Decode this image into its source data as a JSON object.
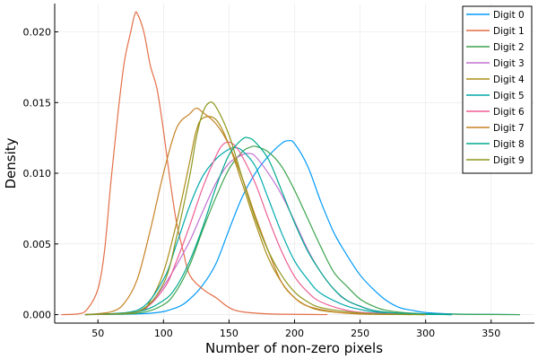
{
  "chart_data": {
    "type": "line",
    "title": "",
    "xlabel": "Number of non-zero pixels",
    "ylabel": "Density",
    "xlim": [
      17,
      383
    ],
    "ylim": [
      -0.0006,
      0.022
    ],
    "xticks": [
      50,
      100,
      150,
      200,
      250,
      300,
      350
    ],
    "xtick_labels": [
      "50",
      "100",
      "150",
      "200",
      "250",
      "300",
      "350"
    ],
    "yticks": [
      0.0,
      0.005,
      0.01,
      0.015,
      0.02
    ],
    "ytick_labels": [
      "0.000",
      "0.005",
      "0.010",
      "0.015",
      "0.020"
    ],
    "grid": true,
    "legend_position": "top-right",
    "series": [
      {
        "name": "Digit 0",
        "color": "#009AFA",
        "x": [
          40,
          90,
          110,
          120,
          130,
          140,
          150,
          160,
          170,
          180,
          190,
          195,
          200,
          210,
          220,
          230,
          240,
          250,
          260,
          270,
          280,
          290,
          300,
          320,
          340,
          372
        ],
        "y": [
          0.0,
          0.0001,
          0.0005,
          0.0011,
          0.0021,
          0.0036,
          0.006,
          0.0083,
          0.01,
          0.0112,
          0.0121,
          0.0123,
          0.0121,
          0.0105,
          0.008,
          0.0058,
          0.0042,
          0.0028,
          0.0018,
          0.001,
          0.0005,
          0.0003,
          0.00015,
          5e-05,
          2e-05,
          0.0
        ]
      },
      {
        "name": "Digit 1",
        "color": "#E36F47",
        "x": [
          22,
          35,
          42,
          50,
          55,
          60,
          65,
          70,
          75,
          78,
          80,
          85,
          90,
          95,
          100,
          105,
          110,
          115,
          120,
          130,
          140,
          150,
          160,
          180,
          200,
          225
        ],
        "y": [
          0.0,
          5e-05,
          0.0004,
          0.0018,
          0.0045,
          0.0095,
          0.014,
          0.0178,
          0.02,
          0.0212,
          0.0213,
          0.02,
          0.0176,
          0.016,
          0.013,
          0.0095,
          0.0065,
          0.0045,
          0.0028,
          0.0018,
          0.0012,
          0.0005,
          0.0002,
          5e-05,
          2e-05,
          0.0
        ]
      },
      {
        "name": "Digit 2",
        "color": "#3EA44E",
        "x": [
          40,
          80,
          100,
          110,
          120,
          130,
          140,
          150,
          160,
          165,
          170,
          180,
          190,
          200,
          210,
          220,
          230,
          240,
          250,
          260,
          270,
          290,
          320,
          372
        ],
        "y": [
          0.0,
          0.0001,
          0.0007,
          0.0017,
          0.0035,
          0.006,
          0.0083,
          0.0103,
          0.0115,
          0.0118,
          0.0119,
          0.0115,
          0.0105,
          0.0088,
          0.0068,
          0.0048,
          0.003,
          0.002,
          0.0011,
          0.0006,
          0.0003,
          0.0001,
          3e-05,
          0.0
        ]
      },
      {
        "name": "Digit 3",
        "color": "#C271D2",
        "x": [
          40,
          80,
          90,
          100,
          110,
          120,
          130,
          140,
          150,
          160,
          165,
          170,
          180,
          190,
          200,
          210,
          220,
          230,
          240,
          260,
          280,
          320
        ],
        "y": [
          0.0,
          0.0002,
          0.0008,
          0.002,
          0.0035,
          0.0052,
          0.0073,
          0.0093,
          0.0107,
          0.0113,
          0.0114,
          0.0112,
          0.01,
          0.0085,
          0.0066,
          0.0046,
          0.003,
          0.0018,
          0.001,
          0.0003,
          0.0001,
          0.0
        ]
      },
      {
        "name": "Digit 4",
        "color": "#AC8D18",
        "x": [
          40,
          80,
          90,
          100,
          110,
          120,
          125,
          130,
          140,
          150,
          160,
          170,
          180,
          190,
          200,
          210,
          220,
          240,
          260,
          300
        ],
        "y": [
          0.0,
          0.0002,
          0.001,
          0.003,
          0.0065,
          0.0108,
          0.013,
          0.0139,
          0.0138,
          0.012,
          0.0093,
          0.0065,
          0.004,
          0.0023,
          0.0012,
          0.0006,
          0.0003,
          0.0001,
          3e-05,
          0.0
        ]
      },
      {
        "name": "Digit 5",
        "color": "#00A9AC",
        "x": [
          40,
          80,
          100,
          110,
          120,
          130,
          140,
          150,
          155,
          160,
          170,
          180,
          190,
          200,
          210,
          220,
          240,
          260,
          280,
          320
        ],
        "y": [
          0.0,
          0.0003,
          0.0025,
          0.005,
          0.0077,
          0.0098,
          0.011,
          0.0117,
          0.0118,
          0.0116,
          0.0105,
          0.0082,
          0.0058,
          0.0038,
          0.0025,
          0.0015,
          0.0006,
          0.0002,
          5e-05,
          0.0
        ]
      },
      {
        "name": "Digit 6",
        "color": "#ED5E93",
        "x": [
          40,
          80,
          100,
          110,
          120,
          130,
          140,
          145,
          150,
          155,
          160,
          170,
          180,
          190,
          200,
          210,
          220,
          240,
          260,
          300
        ],
        "y": [
          0.0,
          0.0002,
          0.0018,
          0.0038,
          0.0063,
          0.009,
          0.0112,
          0.012,
          0.0122,
          0.0119,
          0.0112,
          0.0093,
          0.0068,
          0.0045,
          0.0027,
          0.0016,
          0.0009,
          0.0003,
          0.0001,
          0.0
        ]
      },
      {
        "name": "Digit 7",
        "color": "#C68225",
        "x": [
          40,
          60,
          70,
          80,
          90,
          100,
          110,
          120,
          125,
          130,
          140,
          150,
          160,
          170,
          180,
          190,
          200,
          210,
          230,
          250,
          290
        ],
        "y": [
          0.0,
          0.0002,
          0.0008,
          0.0025,
          0.006,
          0.01,
          0.0132,
          0.0142,
          0.0146,
          0.0143,
          0.0135,
          0.012,
          0.0097,
          0.007,
          0.0045,
          0.0023,
          0.0012,
          0.0006,
          0.0002,
          5e-05,
          0.0
        ]
      },
      {
        "name": "Digit 8",
        "color": "#00A98D",
        "x": [
          40,
          80,
          100,
          110,
          120,
          130,
          140,
          150,
          160,
          165,
          170,
          180,
          190,
          200,
          210,
          220,
          230,
          240,
          250,
          260,
          280,
          320
        ],
        "y": [
          0.0,
          0.0002,
          0.001,
          0.002,
          0.0038,
          0.0062,
          0.009,
          0.0113,
          0.0124,
          0.0125,
          0.0122,
          0.011,
          0.0088,
          0.0065,
          0.0045,
          0.003,
          0.0018,
          0.001,
          0.0006,
          0.0003,
          0.0001,
          0.0
        ]
      },
      {
        "name": "Digit 9",
        "color": "#8E971D",
        "x": [
          40,
          80,
          100,
          110,
          120,
          125,
          130,
          135,
          140,
          150,
          160,
          170,
          180,
          190,
          200,
          210,
          220,
          240,
          260,
          300
        ],
        "y": [
          0.0,
          0.0002,
          0.0022,
          0.0055,
          0.0098,
          0.0125,
          0.0143,
          0.015,
          0.0147,
          0.0127,
          0.0097,
          0.0068,
          0.0045,
          0.0028,
          0.0016,
          0.0009,
          0.0005,
          0.0002,
          5e-05,
          0.0
        ]
      }
    ]
  }
}
